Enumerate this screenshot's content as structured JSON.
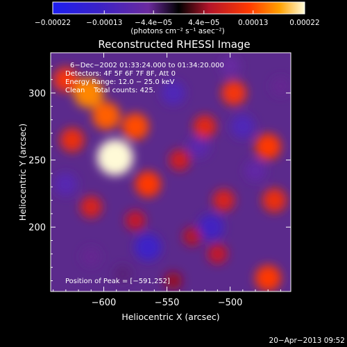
{
  "chart_data": {
    "type": "heatmap",
    "title": "Reconstructed RHESSI Image",
    "xlabel": "Heliocentric X (arcsec)",
    "ylabel": "Heliocentric Y (arcsec)",
    "xlim": [
      -642,
      -452
    ],
    "ylim": [
      152,
      330
    ],
    "x_ticks": [
      -600,
      -550,
      -500
    ],
    "x_tick_labels": [
      "−600",
      "−550",
      "−500"
    ],
    "y_ticks": [
      200,
      250,
      300
    ],
    "y_tick_labels": [
      "200",
      "250",
      "300"
    ],
    "colorbar": {
      "range": [
        -0.00022,
        0.00022
      ],
      "ticks": [
        -0.00022,
        -0.00013,
        -4.4e-05,
        4.4e-05,
        0.00013,
        0.00022
      ],
      "tick_labels": [
        "−0.00022",
        "−0.00013",
        "−4.4e−05",
        "4.4e−05",
        "0.00013",
        "0.00022"
      ],
      "units_text": "(photons cm⁻² s⁻¹ asec⁻²)"
    },
    "annotations": [
      "6−Dec−2002 01:33:24.000 to 01:34:20.000",
      "Detectors: 4F 5F 6F 7F 8F, Att 0",
      "Energy Range: 12.0 − 25.0 keV",
      "Clean    Total counts: 425."
    ],
    "peak_label": "Position of Peak = [−591,252]",
    "peak": [
      -591,
      252
    ],
    "blobs": [
      {
        "x": -591,
        "y": 252,
        "value": 0.00022
      },
      {
        "x": -612,
        "y": 300,
        "value": 0.00016
      },
      {
        "x": -575,
        "y": 275,
        "value": 0.00013
      },
      {
        "x": -598,
        "y": 283,
        "value": 0.00014
      },
      {
        "x": -625,
        "y": 265,
        "value": 0.0001
      },
      {
        "x": -565,
        "y": 232,
        "value": 0.00012
      },
      {
        "x": -630,
        "y": 310,
        "value": 0.00011
      },
      {
        "x": -610,
        "y": 215,
        "value": 8e-05
      },
      {
        "x": -575,
        "y": 205,
        "value": 6e-05
      },
      {
        "x": -540,
        "y": 250,
        "value": 7e-05
      },
      {
        "x": -520,
        "y": 275,
        "value": 9e-05
      },
      {
        "x": -497,
        "y": 300,
        "value": 0.00011
      },
      {
        "x": -470,
        "y": 260,
        "value": 0.00012
      },
      {
        "x": -465,
        "y": 220,
        "value": 0.0001
      },
      {
        "x": -505,
        "y": 220,
        "value": 8e-05
      },
      {
        "x": -510,
        "y": 180,
        "value": 6e-05
      },
      {
        "x": -470,
        "y": 162,
        "value": 0.00012
      },
      {
        "x": -530,
        "y": 193,
        "value": 5e-05
      },
      {
        "x": -545,
        "y": 160,
        "value": 4e-05
      },
      {
        "x": -630,
        "y": 232,
        "value": -9e-05
      },
      {
        "x": -565,
        "y": 185,
        "value": -0.00013
      },
      {
        "x": -545,
        "y": 300,
        "value": -0.0001
      },
      {
        "x": -525,
        "y": 260,
        "value": -8e-05
      },
      {
        "x": -515,
        "y": 200,
        "value": -0.00012
      },
      {
        "x": -490,
        "y": 275,
        "value": -0.0001
      },
      {
        "x": -480,
        "y": 242,
        "value": -7e-05
      },
      {
        "x": -610,
        "y": 178,
        "value": -5e-05
      },
      {
        "x": -500,
        "y": 320,
        "value": -6e-05
      },
      {
        "x": -585,
        "y": 165,
        "value": -4e-05
      },
      {
        "x": -460,
        "y": 305,
        "value": -5e-05
      }
    ]
  },
  "footer": {
    "timestamp": "20−Apr−2013 09:52"
  }
}
